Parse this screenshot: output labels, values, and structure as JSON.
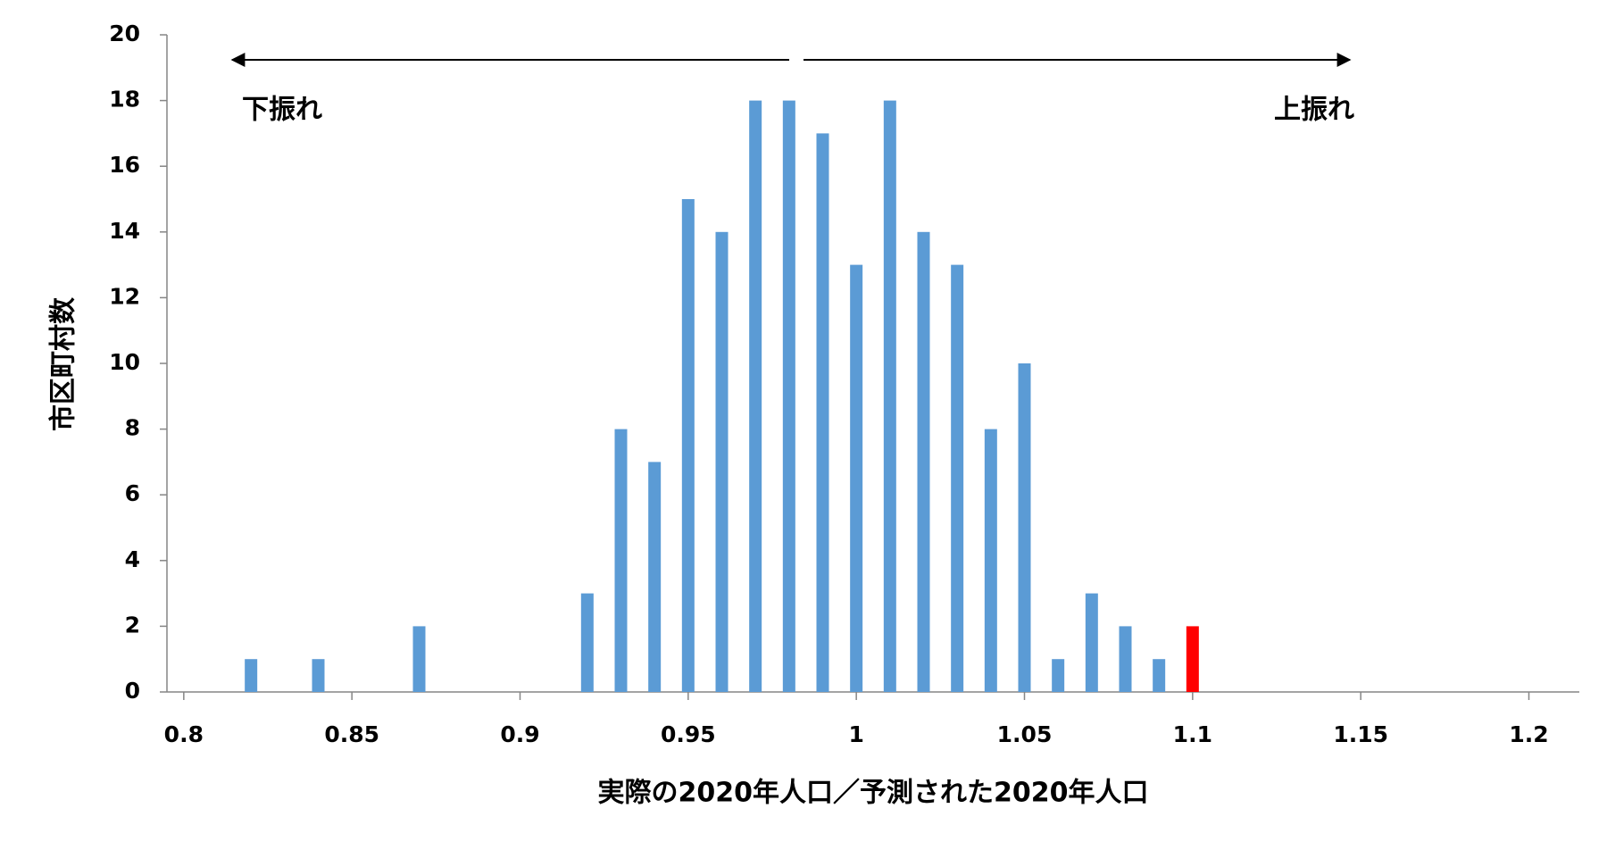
{
  "chart_data": {
    "type": "bar",
    "x_label": "実際の2020年人口／予測された2020年人口",
    "y_label": "市区町村数",
    "annotations": [
      "下振れ",
      "上振れ"
    ],
    "x": [
      0.82,
      0.84,
      0.87,
      0.92,
      0.93,
      0.94,
      0.95,
      0.96,
      0.97,
      0.98,
      0.99,
      1.0,
      1.01,
      1.02,
      1.03,
      1.04,
      1.05,
      1.06,
      1.07,
      1.08,
      1.09,
      1.1
    ],
    "values": [
      1,
      1,
      2,
      3,
      8,
      7,
      15,
      14,
      18,
      18,
      17,
      13,
      18,
      14,
      13,
      8,
      10,
      1,
      3,
      2,
      1,
      2
    ],
    "colors": [
      "#5b9bd5",
      "#5b9bd5",
      "#5b9bd5",
      "#5b9bd5",
      "#5b9bd5",
      "#5b9bd5",
      "#5b9bd5",
      "#5b9bd5",
      "#5b9bd5",
      "#5b9bd5",
      "#5b9bd5",
      "#5b9bd5",
      "#5b9bd5",
      "#5b9bd5",
      "#5b9bd5",
      "#5b9bd5",
      "#5b9bd5",
      "#5b9bd5",
      "#5b9bd5",
      "#5b9bd5",
      "#5b9bd5",
      "#ff0000"
    ],
    "xlim": [
      0.795,
      1.215
    ],
    "xticks": [
      0.8,
      0.85,
      0.9,
      0.95,
      1,
      1.05,
      1.1,
      1.15,
      1.2
    ],
    "ylim": [
      0,
      20
    ],
    "yticks": [
      0,
      2,
      4,
      6,
      8,
      10,
      12,
      14,
      16,
      18,
      20
    ],
    "grid": false
  }
}
